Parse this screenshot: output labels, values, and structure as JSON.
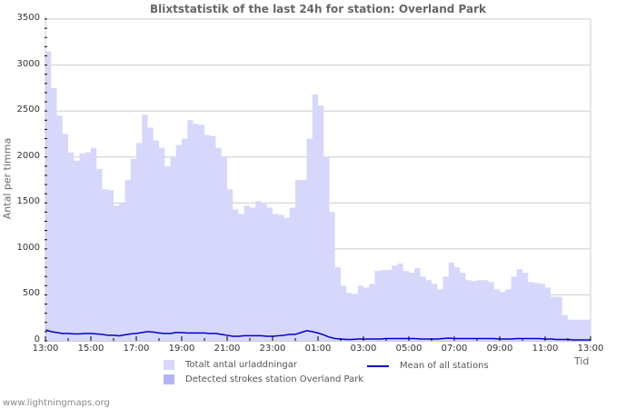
{
  "header": {
    "title": "Blixtstatistik of the last 24h for station: Overland Park"
  },
  "footer": {
    "site": "www.lightningmaps.org"
  },
  "colors": {
    "total_fill": "#d7d7fb",
    "detected_fill": "#b4b4f4",
    "mean_line": "#0000cc",
    "grid": "#cccccc",
    "axis": "#333333"
  },
  "chart_data": {
    "type": "area",
    "title": "Blixtstatistik of the last 24h for station: Overland Park",
    "xlabel": "Tid",
    "ylabel": "Antal per timma",
    "ylim": [
      0,
      3500
    ],
    "yticks": [
      "0",
      "500",
      "1000",
      "1500",
      "2000",
      "2500",
      "3000",
      "3500"
    ],
    "xticks": [
      "13:00",
      "15:00",
      "17:00",
      "19:00",
      "21:00",
      "23:00",
      "01:00",
      "03:00",
      "05:00",
      "07:00",
      "09:00",
      "11:00",
      "13:00"
    ],
    "x_hours_from_start": [
      0,
      0.25,
      0.5,
      0.75,
      1,
      1.25,
      1.5,
      1.75,
      2,
      2.25,
      2.5,
      2.75,
      3,
      3.25,
      3.5,
      3.75,
      4,
      4.25,
      4.5,
      4.75,
      5,
      5.25,
      5.5,
      5.75,
      6,
      6.25,
      6.5,
      6.75,
      7,
      7.25,
      7.5,
      7.75,
      8,
      8.25,
      8.5,
      8.75,
      9,
      9.25,
      9.5,
      9.75,
      10,
      10.25,
      10.5,
      10.75,
      11,
      11.25,
      11.5,
      11.75,
      12,
      12.25,
      12.5,
      12.75,
      13,
      13.25,
      13.5,
      13.75,
      14,
      14.25,
      14.5,
      14.75,
      15,
      15.25,
      15.5,
      15.75,
      16,
      16.25,
      16.5,
      16.75,
      17,
      17.25,
      17.5,
      17.75,
      18,
      18.25,
      18.5,
      18.75,
      19,
      19.25,
      19.5,
      19.75,
      20,
      20.25,
      20.5,
      20.75,
      21,
      21.25,
      21.5,
      21.75,
      22,
      22.25,
      22.5,
      22.75,
      23,
      23.25,
      23.5,
      23.75,
      24
    ],
    "series": [
      {
        "name": "Totalt antal urladdningar",
        "values": [
          3150,
          2750,
          2450,
          2250,
          2050,
          1960,
          2040,
          2050,
          2100,
          1870,
          1650,
          1640,
          1470,
          1500,
          1750,
          1980,
          2150,
          2460,
          2320,
          2180,
          2100,
          1900,
          2000,
          2130,
          2200,
          2400,
          2360,
          2350,
          2240,
          2230,
          2100,
          2000,
          1650,
          1430,
          1380,
          1470,
          1450,
          1520,
          1490,
          1450,
          1380,
          1370,
          1340,
          1450,
          1750,
          1750,
          2200,
          2680,
          2560,
          2000,
          1400,
          800,
          600,
          520,
          510,
          600,
          580,
          620,
          760,
          770,
          770,
          820,
          840,
          760,
          740,
          790,
          700,
          660,
          620,
          560,
          700,
          850,
          800,
          740,
          660,
          650,
          660,
          660,
          640,
          560,
          530,
          560,
          700,
          780,
          740,
          640,
          630,
          620,
          580,
          480,
          480,
          280,
          230,
          230,
          230,
          230,
          230
        ],
        "fill": "#d7d7fb"
      },
      {
        "name": "Detected strokes station Overland Park",
        "values": [],
        "fill": "#b4b4f4"
      },
      {
        "name": "Mean of all stations",
        "values": [
          120,
          100,
          90,
          80,
          80,
          75,
          75,
          80,
          80,
          75,
          70,
          60,
          60,
          55,
          65,
          75,
          80,
          90,
          100,
          95,
          85,
          80,
          80,
          90,
          90,
          85,
          85,
          85,
          85,
          80,
          80,
          70,
          60,
          50,
          50,
          55,
          55,
          55,
          55,
          50,
          50,
          55,
          60,
          70,
          70,
          90,
          110,
          100,
          85,
          65,
          40,
          25,
          20,
          15,
          15,
          20,
          20,
          20,
          20,
          20,
          25,
          25,
          25,
          25,
          25,
          25,
          20,
          20,
          20,
          20,
          25,
          30,
          25,
          25,
          25,
          25,
          25,
          25,
          25,
          25,
          20,
          20,
          20,
          25,
          25,
          25,
          25,
          25,
          20,
          20,
          15,
          15,
          15,
          10,
          10,
          10,
          10
        ],
        "line": "#0000cc"
      }
    ],
    "legend": [
      {
        "label": "Totalt antal urladdningar",
        "type": "fill",
        "color": "#d7d7fb"
      },
      {
        "label": "Detected strokes station Overland Park",
        "type": "fill",
        "color": "#b4b4f4"
      },
      {
        "label": "Mean of all stations",
        "type": "line",
        "color": "#0000cc"
      }
    ],
    "grid": true,
    "legend_position": "bottom"
  }
}
